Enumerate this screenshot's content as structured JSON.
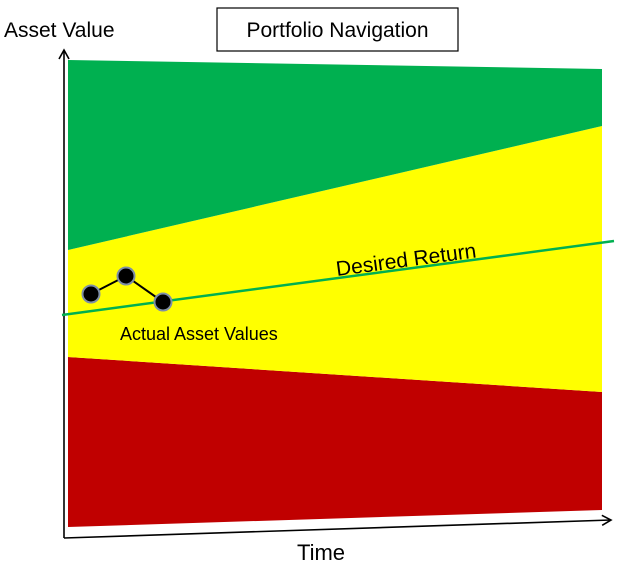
{
  "title": "Portfolio Navigation",
  "y_axis_label": "Asset Value",
  "x_axis_label": "Time",
  "desired_return_label": "Desired Return",
  "actual_values_label": "Actual Asset Values",
  "colors": {
    "green_zone": "#00b050",
    "yellow_zone": "#ffff00",
    "red_zone": "#c00000",
    "desired_return_line": "#00b050",
    "actual_points": "#000000",
    "point_outline": "#7f8fa6",
    "axis": "#000000"
  },
  "actual_asset_values": {
    "point_count": 3
  }
}
